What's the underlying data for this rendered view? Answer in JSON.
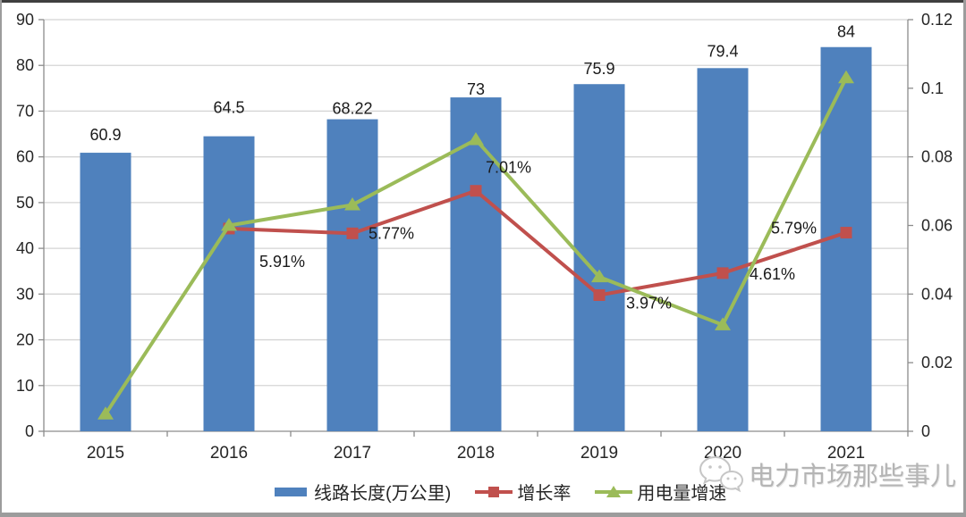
{
  "watermark": {
    "text": "电力市场那些事儿",
    "icon": "wechat-icon"
  },
  "colors": {
    "bar": "#4F81BD",
    "growth_line": "#C0504D",
    "electricity_line": "#9BBB59",
    "gridline": "#D4D4D4",
    "axis": "#8C8C8C",
    "tick_label": "#262626",
    "data_label": "#1a1a1a"
  },
  "chart_data": {
    "type": "combo-bar-line",
    "categories": [
      "2015",
      "2016",
      "2017",
      "2018",
      "2019",
      "2020",
      "2021"
    ],
    "series": [
      {
        "name": "线路长度(万公里)",
        "type": "bar",
        "axis": "left",
        "color": "#4F81BD",
        "values": [
          60.9,
          64.5,
          68.22,
          73,
          75.9,
          79.4,
          84
        ],
        "labels": [
          "60.9",
          "64.5",
          "68.22",
          "73",
          "75.9",
          "79.4",
          "84"
        ]
      },
      {
        "name": "增长率",
        "type": "line",
        "marker": "square",
        "axis": "right",
        "color": "#C0504D",
        "values": [
          null,
          0.0591,
          0.0577,
          0.0701,
          0.0397,
          0.0461,
          0.0579
        ],
        "labels": [
          null,
          "5.91%",
          "5.77%",
          "7.01%",
          "3.97%",
          "4.61%",
          "5.79%"
        ]
      },
      {
        "name": "用电量增速",
        "type": "line",
        "marker": "triangle",
        "axis": "right",
        "color": "#9BBB59",
        "values": [
          0.005,
          0.06,
          0.066,
          0.085,
          0.045,
          0.031,
          0.103
        ],
        "labels": []
      }
    ],
    "left_axis": {
      "min": 0,
      "max": 90,
      "step": 10,
      "ticks": [
        "0",
        "10",
        "20",
        "30",
        "40",
        "50",
        "60",
        "70",
        "80",
        "90"
      ]
    },
    "right_axis": {
      "min": 0,
      "max": 0.12,
      "step": 0.02,
      "ticks": [
        "0",
        "0.02",
        "0.04",
        "0.06",
        "0.08",
        "0.1",
        "0.12"
      ]
    },
    "grid": true,
    "legend_position": "bottom"
  }
}
